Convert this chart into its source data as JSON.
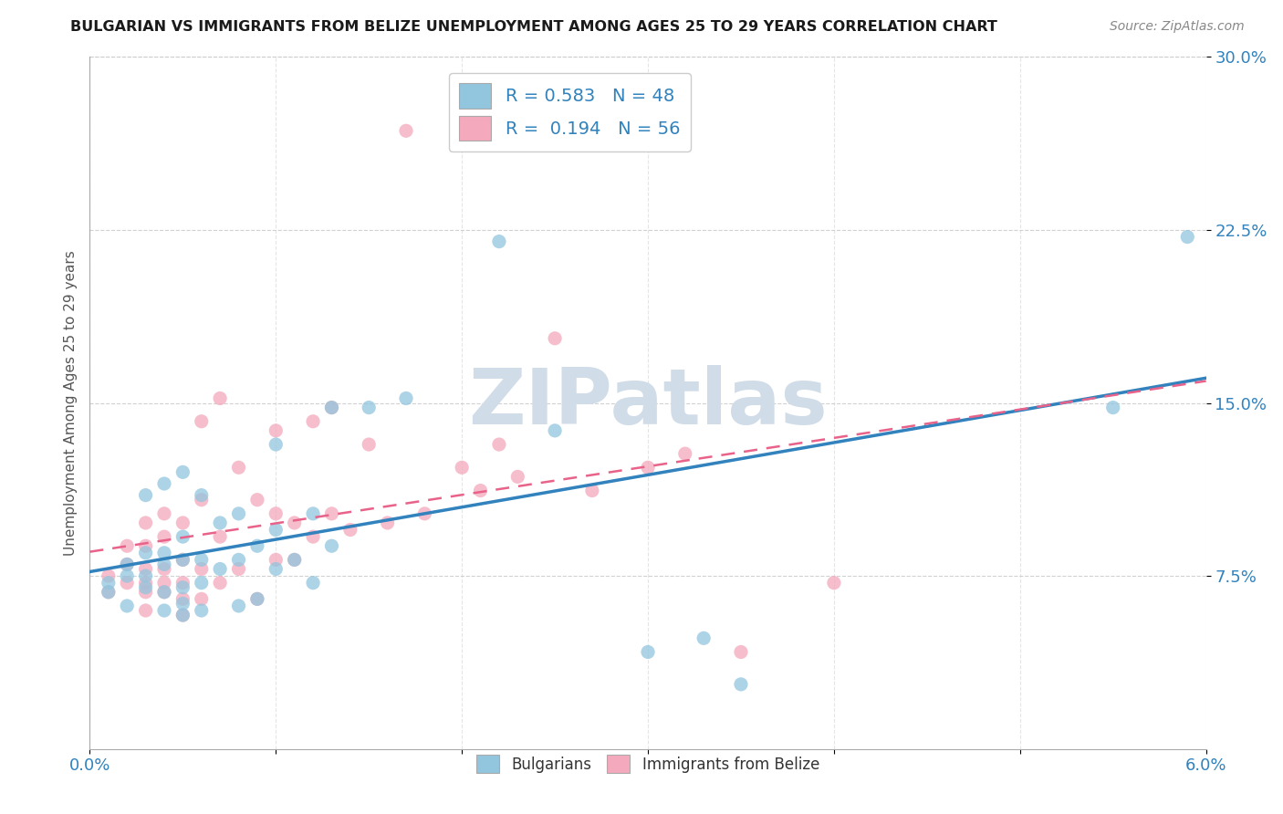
{
  "title": "BULGARIAN VS IMMIGRANTS FROM BELIZE UNEMPLOYMENT AMONG AGES 25 TO 29 YEARS CORRELATION CHART",
  "source": "Source: ZipAtlas.com",
  "ylabel": "Unemployment Among Ages 25 to 29 years",
  "blue_R": 0.583,
  "blue_N": 48,
  "pink_R": 0.194,
  "pink_N": 56,
  "xlim": [
    0.0,
    0.06
  ],
  "ylim": [
    0.0,
    0.3
  ],
  "xticks": [
    0.0,
    0.01,
    0.02,
    0.03,
    0.04,
    0.05,
    0.06
  ],
  "yticks": [
    0.075,
    0.15,
    0.225,
    0.3
  ],
  "ytick_labels": [
    "7.5%",
    "15.0%",
    "22.5%",
    "30.0%"
  ],
  "xtick_labels": [
    "0.0%",
    "",
    "",
    "",
    "",
    "",
    "6.0%"
  ],
  "blue_color": "#92c5de",
  "pink_color": "#f4a9bc",
  "blue_line_color": "#3182bd",
  "pink_line_color": "#e8628a",
  "watermark_color": "#d0dce8",
  "watermark": "ZIPatlas",
  "legend_label_blue": "Bulgarians",
  "legend_label_pink": "Immigrants from Belize",
  "blue_scatter_x": [
    0.001,
    0.001,
    0.002,
    0.002,
    0.002,
    0.003,
    0.003,
    0.003,
    0.003,
    0.004,
    0.004,
    0.004,
    0.004,
    0.004,
    0.005,
    0.005,
    0.005,
    0.005,
    0.005,
    0.005,
    0.006,
    0.006,
    0.006,
    0.006,
    0.007,
    0.007,
    0.008,
    0.008,
    0.008,
    0.009,
    0.009,
    0.01,
    0.01,
    0.01,
    0.011,
    0.012,
    0.012,
    0.013,
    0.013,
    0.015,
    0.017,
    0.022,
    0.025,
    0.03,
    0.033,
    0.035,
    0.055,
    0.059
  ],
  "blue_scatter_y": [
    0.068,
    0.072,
    0.075,
    0.062,
    0.08,
    0.07,
    0.075,
    0.085,
    0.11,
    0.06,
    0.068,
    0.08,
    0.085,
    0.115,
    0.058,
    0.063,
    0.07,
    0.082,
    0.092,
    0.12,
    0.06,
    0.072,
    0.082,
    0.11,
    0.078,
    0.098,
    0.062,
    0.082,
    0.102,
    0.065,
    0.088,
    0.078,
    0.095,
    0.132,
    0.082,
    0.072,
    0.102,
    0.088,
    0.148,
    0.148,
    0.152,
    0.22,
    0.138,
    0.042,
    0.048,
    0.028,
    0.148,
    0.222
  ],
  "pink_scatter_x": [
    0.001,
    0.001,
    0.002,
    0.002,
    0.002,
    0.003,
    0.003,
    0.003,
    0.003,
    0.003,
    0.003,
    0.004,
    0.004,
    0.004,
    0.004,
    0.004,
    0.005,
    0.005,
    0.005,
    0.005,
    0.005,
    0.006,
    0.006,
    0.006,
    0.006,
    0.007,
    0.007,
    0.007,
    0.008,
    0.008,
    0.009,
    0.009,
    0.01,
    0.01,
    0.01,
    0.011,
    0.011,
    0.012,
    0.012,
    0.013,
    0.013,
    0.014,
    0.015,
    0.016,
    0.017,
    0.018,
    0.02,
    0.021,
    0.022,
    0.023,
    0.025,
    0.027,
    0.03,
    0.032,
    0.035,
    0.04
  ],
  "pink_scatter_y": [
    0.068,
    0.075,
    0.072,
    0.08,
    0.088,
    0.06,
    0.068,
    0.072,
    0.078,
    0.088,
    0.098,
    0.068,
    0.072,
    0.078,
    0.092,
    0.102,
    0.058,
    0.065,
    0.072,
    0.082,
    0.098,
    0.065,
    0.078,
    0.108,
    0.142,
    0.072,
    0.092,
    0.152,
    0.078,
    0.122,
    0.065,
    0.108,
    0.082,
    0.102,
    0.138,
    0.082,
    0.098,
    0.092,
    0.142,
    0.102,
    0.148,
    0.095,
    0.132,
    0.098,
    0.268,
    0.102,
    0.122,
    0.112,
    0.132,
    0.118,
    0.178,
    0.112,
    0.122,
    0.128,
    0.042,
    0.072
  ]
}
